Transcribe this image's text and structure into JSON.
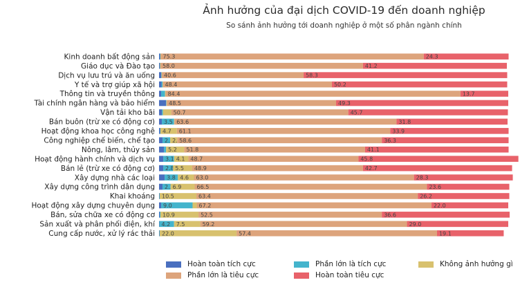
{
  "chart_data": {
    "type": "bar",
    "orientation": "horizontal",
    "stacked": true,
    "title": "Ảnh hưởng của đại dịch COVID-19 đến doanh nghiệp",
    "subtitle": "So sánh ảnh hưởng tới doanh nghiệp ở một số phân ngành chính",
    "xlim": [
      0,
      100
    ],
    "legend_position": "bottom",
    "categories": [
      "Kinh doanh bất động sản",
      "Giáo dục và Đào tạo",
      "Dịch vụ lưu trú và ăn uống",
      "Y tế và trợ giúp xã hội",
      "Thông tin và truyền thông",
      "Tài chính ngân hàng và bảo hiểm",
      "Vận tải kho bãi",
      "Bán buôn (trừ xe có động cơ)",
      "Hoạt động khoa học công nghệ",
      "Công nghiệp chế biến, chế tạo",
      "Nông, lâm, thủy sản",
      "Hoạt động hành chính và dịch vụ",
      "Bán lẻ (trừ xe có động cơ)",
      "Xây dựng nhà các loại",
      "Xây dựng công trình dân dụng",
      "Khai khoáng",
      "Hoạt động xây dựng chuyên dụng",
      "Bán, sửa chữa xe có động cơ",
      "Sản xuất và phân phối điện, khí",
      "Cung cấp nước, xử lý rác thải"
    ],
    "series": [
      {
        "name": "Hoàn toàn tích cực",
        "color": "#4a6fbf",
        "values": [
          0.3,
          0.2,
          0.6,
          0.7,
          0.6,
          2.0,
          0.8,
          0.8,
          0.3,
          1.0,
          1.4,
          1.2,
          1.2,
          1.6,
          1.0,
          0.1,
          0.6,
          0.2,
          0.1,
          0.1
        ]
      },
      {
        "name": "Phần lớn là tích cực",
        "color": "#44b4cc",
        "values": [
          0.1,
          0.1,
          0.1,
          0.3,
          1.1,
          0.1,
          0.3,
          3.5,
          0.1,
          2.2,
          0.6,
          3.1,
          2.8,
          3.8,
          2.3,
          0.1,
          9.0,
          0.2,
          4.2,
          0.1
        ]
      },
      {
        "name": "Không ảnh hưởng gì",
        "color": "#d8c16e",
        "values": [
          0.1,
          0.1,
          0.1,
          0.1,
          0.2,
          0.1,
          2.4,
          0.1,
          4.7,
          2.0,
          5.2,
          4.1,
          5.5,
          4.6,
          6.9,
          10.5,
          1.2,
          10.9,
          7.5,
          22.0
        ]
      },
      {
        "name": "Phần lớn là tiêu cực",
        "color": "#dda47c",
        "values": [
          75.3,
          58.0,
          40.6,
          48.4,
          84.4,
          48.5,
          50.7,
          63.6,
          61.1,
          58.6,
          51.8,
          48.7,
          48.9,
          63.0,
          66.5,
          63.4,
          67.2,
          52.5,
          59.2,
          57.4
        ]
      },
      {
        "name": "Hoàn toàn tiêu cực",
        "color": "#e8626a",
        "values": [
          24.3,
          41.2,
          58.3,
          50.2,
          13.7,
          49.3,
          45.7,
          31.8,
          33.9,
          36.3,
          41.1,
          45.8,
          42.7,
          28.3,
          23.6,
          26.2,
          22.0,
          36.6,
          29.0,
          19.1
        ]
      }
    ],
    "data_labels": [
      [
        "",
        "",
        "",
        "75.3",
        "24.3"
      ],
      [
        "",
        "",
        "",
        "58.0",
        "41.2"
      ],
      [
        "",
        "",
        "",
        "40.6",
        "58.3"
      ],
      [
        "",
        "",
        "",
        "48.4",
        "50.2"
      ],
      [
        "",
        "",
        "",
        "84.4",
        "13.7"
      ],
      [
        "",
        "",
        "",
        "48.5",
        "49.3"
      ],
      [
        "",
        "",
        "",
        "50.7",
        "45.7"
      ],
      [
        "",
        "3.5",
        "",
        "63.6",
        "31.8"
      ],
      [
        "",
        "",
        "4.7",
        "61.1",
        "33.9"
      ],
      [
        "",
        "2.2",
        "2.0",
        "58.6",
        "36.3"
      ],
      [
        "",
        "",
        "5.2",
        "51.8",
        "41.1"
      ],
      [
        "",
        "3.1",
        "4.1",
        "48.7",
        "45.8"
      ],
      [
        "",
        "2.8",
        "5.5",
        "48.9",
        "42.7"
      ],
      [
        "",
        "3.8",
        "4.6",
        "63.0",
        "28.3"
      ],
      [
        "",
        "2.3",
        "6.9",
        "66.5",
        "23.6"
      ],
      [
        "",
        "",
        "10.5",
        "63.4",
        "26.2"
      ],
      [
        "",
        "9.0",
        "",
        "67.2",
        "22.0"
      ],
      [
        "",
        "",
        "10.9",
        "52.5",
        "36.6"
      ],
      [
        "",
        "4.2",
        "7.5",
        "59.2",
        "29.0"
      ],
      [
        "",
        "",
        "22.0",
        "57.4",
        "19.1"
      ]
    ]
  }
}
